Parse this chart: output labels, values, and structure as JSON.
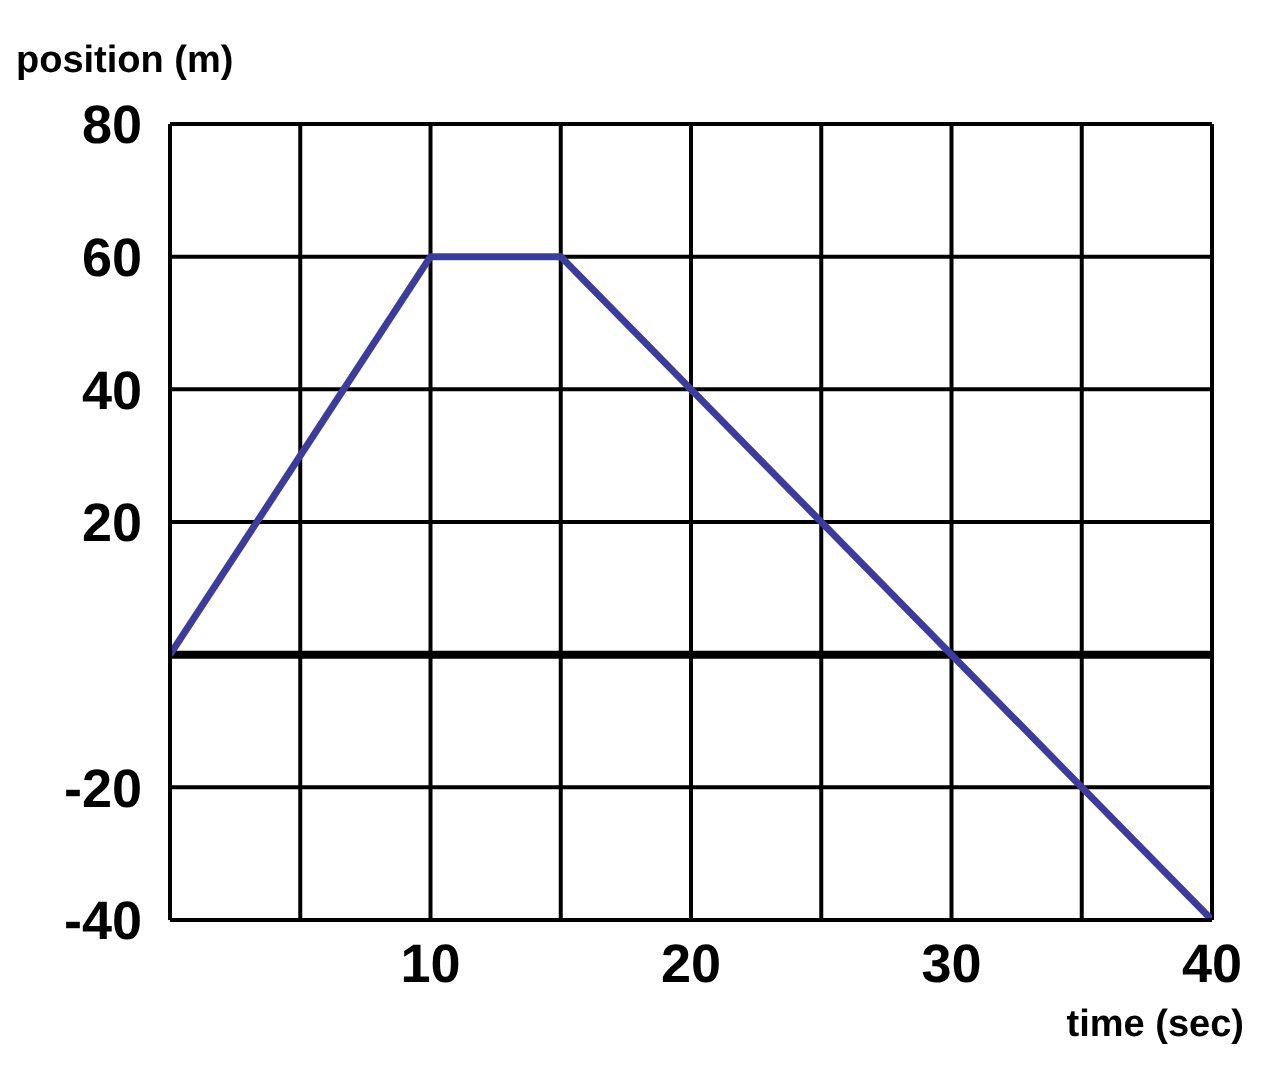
{
  "chart_data": {
    "type": "line",
    "xlabel": "time (sec)",
    "ylabel": "position (m)",
    "x": [
      0,
      10,
      15,
      40
    ],
    "series": [
      {
        "color": "#3c3c9c",
        "values": [
          0,
          60,
          60,
          -40
        ]
      }
    ],
    "xlim": [
      0,
      40
    ],
    "xticks": [
      {
        "value": 0,
        "label": null
      },
      {
        "value": 5,
        "label": null
      },
      10,
      {
        "value": 15,
        "label": null
      },
      20,
      {
        "value": 25,
        "label": null
      },
      30,
      {
        "value": 35,
        "label": null
      },
      40
    ],
    "ylim": [
      -40,
      80
    ],
    "yticks": [
      -40,
      -20,
      {
        "value": 0,
        "label": null
      },
      20,
      40,
      60,
      80
    ],
    "grid": true,
    "marker": "none",
    "line_style": "solid",
    "ref_lines": [
      {
        "axis": "y",
        "value": 0,
        "color": "#000000"
      }
    ]
  }
}
